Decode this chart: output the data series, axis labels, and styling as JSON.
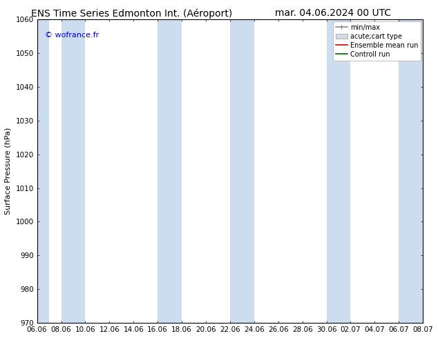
{
  "title_left": "ENS Time Series Edmonton Int. (Aéroport)",
  "title_right": "mar. 04.06.2024 00 UTC",
  "ylabel": "Surface Pressure (hPa)",
  "ylim": [
    970,
    1060
  ],
  "yticks": [
    970,
    980,
    990,
    1000,
    1010,
    1020,
    1030,
    1040,
    1050,
    1060
  ],
  "xtick_labels": [
    "06.06",
    "08.06",
    "10.06",
    "12.06",
    "14.06",
    "16.06",
    "18.06",
    "20.06",
    "22.06",
    "24.06",
    "26.06",
    "28.06",
    "30.06",
    "02.07",
    "04.07",
    "06.07",
    "08.07"
  ],
  "copyright": "© wofrance.fr",
  "copyright_color": "#0000cc",
  "band_color": "#ccddf0",
  "legend_labels": [
    "min/max",
    "acute;cart type",
    "Ensemble mean run",
    "Controll run"
  ],
  "background_color": "#ffffff",
  "title_fontsize": 10,
  "tick_fontsize": 7.5,
  "ylabel_fontsize": 8,
  "copyright_fontsize": 8
}
